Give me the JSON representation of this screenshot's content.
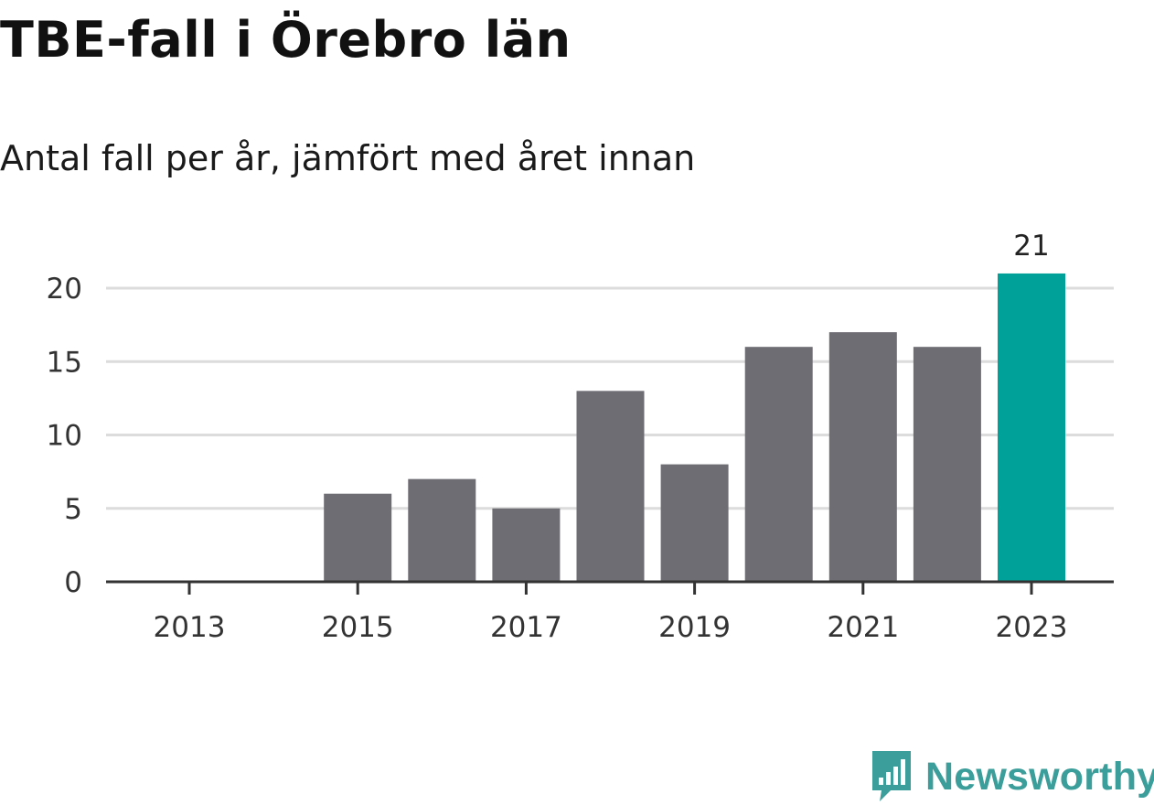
{
  "title": "TBE-fall i Örebro län",
  "subtitle": "Antal fall per år, jämfört med året innan",
  "brand": {
    "name": "Newsworthy",
    "icon": "newsworthy-logo-icon",
    "color": "#3b9e9a"
  },
  "colors": {
    "bar": "#6e6d73",
    "highlight": "#00a199",
    "grid": "#dcdcdc",
    "axis": "#333333"
  },
  "chart_data": {
    "type": "bar",
    "categories": [
      2013,
      2014,
      2015,
      2016,
      2017,
      2018,
      2019,
      2020,
      2021,
      2022,
      2023
    ],
    "values": [
      0,
      0,
      6,
      7,
      5,
      13,
      8,
      16,
      17,
      16,
      21
    ],
    "highlight_category": 2023,
    "data_labels": [
      {
        "category": 2023,
        "text": "21"
      }
    ],
    "title": "TBE-fall i Örebro län",
    "subtitle": "Antal fall per år, jämfört med året innan",
    "xlabel": "",
    "ylabel": "",
    "ylim": [
      0,
      21
    ],
    "yticks": [
      0,
      5,
      10,
      15,
      20
    ],
    "xticks": [
      2013,
      2015,
      2017,
      2019,
      2021,
      2023
    ],
    "grid": true,
    "legend": "none"
  }
}
